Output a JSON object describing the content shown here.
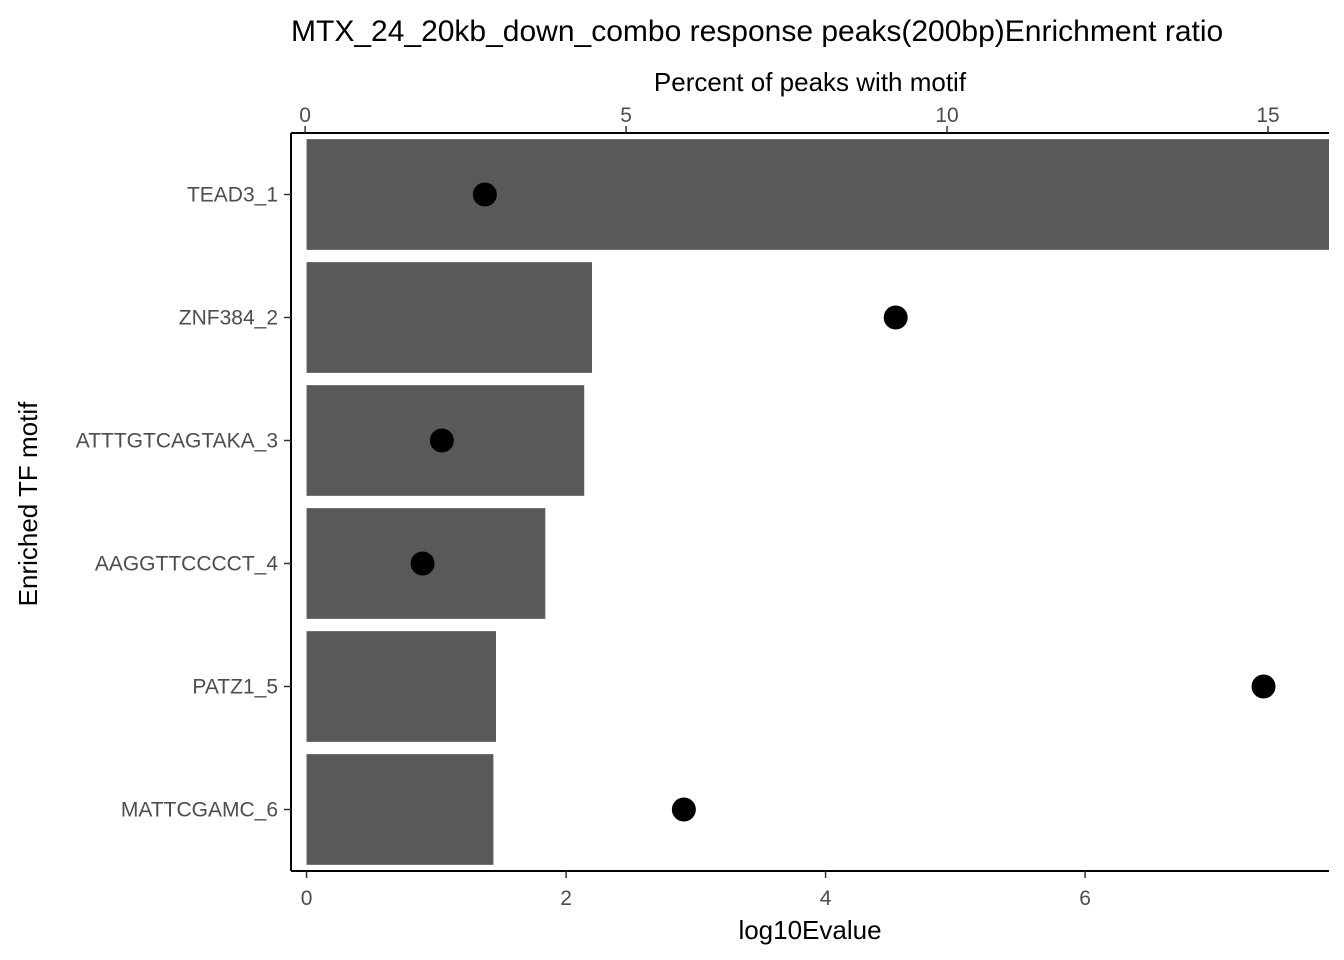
{
  "chart_data": {
    "type": "bar",
    "title": "MTX_24_20kb_down_combo response peaks(200bp)Enrichment ratio",
    "xlabel": "log10Evalue",
    "x2label": "Percent of peaks with motif",
    "ylabel": "Enriched TF motif",
    "orientation": "horizontal",
    "categories": [
      "TEAD3_1",
      "ZNF384_2",
      "ATTTGTCAGTAKA_3",
      "AAGGTTCCCCT_4",
      "PATZ1_5",
      "MATTCGAMC_6"
    ],
    "series": [
      {
        "type": "bar",
        "axis": "bottom",
        "values": [
          7.88,
          2.2,
          2.14,
          1.84,
          1.46,
          1.44
        ]
      },
      {
        "type": "point",
        "axis": "top",
        "values": [
          2.8,
          9.2,
          2.13,
          1.83,
          14.93,
          5.9
        ]
      }
    ],
    "xlim": [
      -0.12,
      7.88
    ],
    "x2lim": [
      -0.22,
      15.95
    ],
    "xticks": [
      "0",
      "2",
      "4",
      "6"
    ],
    "x2ticks": [
      "0",
      "5",
      "10",
      "15"
    ],
    "bar_color": "#595959",
    "point_color": "#000000",
    "grid": false,
    "legend": "none"
  }
}
